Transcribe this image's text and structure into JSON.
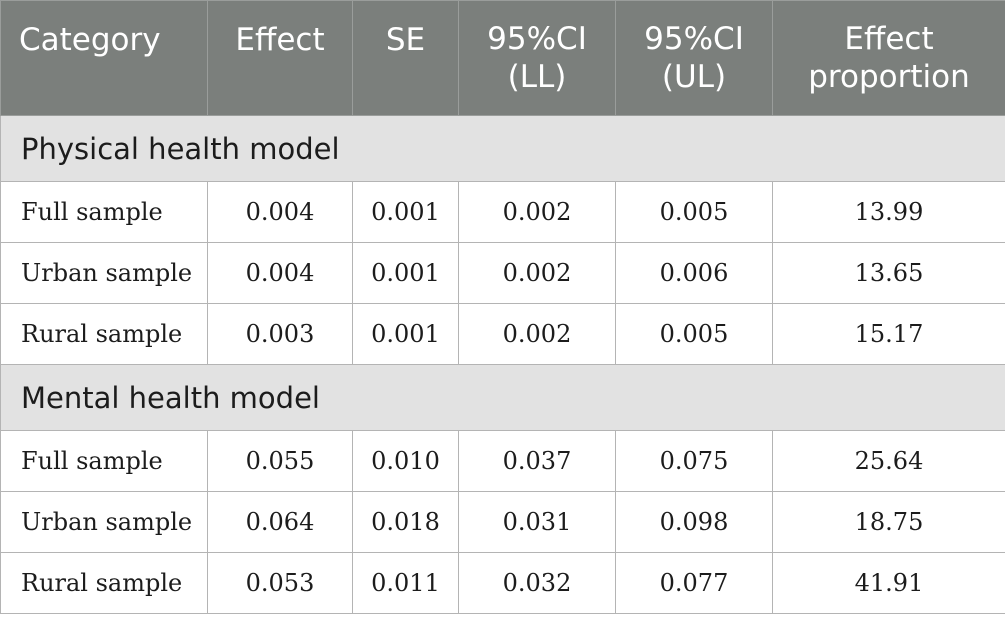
{
  "header": {
    "category": "Category",
    "effect": "Effect",
    "se": "SE",
    "ci_ll": [
      "95%CI",
      "(LL)"
    ],
    "ci_ul": [
      "95%CI",
      "(UL)"
    ],
    "effect_proportion": [
      "Effect",
      "proportion"
    ]
  },
  "sections": [
    {
      "title": "Physical health model",
      "rows": [
        {
          "category": "Full sample",
          "effect": "0.004",
          "se": "0.001",
          "ci_ll": "0.002",
          "ci_ul": "0.005",
          "effect_proportion": "13.99"
        },
        {
          "category": "Urban sample",
          "effect": "0.004",
          "se": "0.001",
          "ci_ll": "0.002",
          "ci_ul": "0.006",
          "effect_proportion": "13.65"
        },
        {
          "category": "Rural sample",
          "effect": "0.003",
          "se": "0.001",
          "ci_ll": "0.002",
          "ci_ul": "0.005",
          "effect_proportion": "15.17"
        }
      ]
    },
    {
      "title": "Mental health model",
      "rows": [
        {
          "category": "Full sample",
          "effect": "0.055",
          "se": "0.010",
          "ci_ll": "0.037",
          "ci_ul": "0.075",
          "effect_proportion": "25.64"
        },
        {
          "category": "Urban sample",
          "effect": "0.064",
          "se": "0.018",
          "ci_ll": "0.031",
          "ci_ul": "0.098",
          "effect_proportion": "18.75"
        },
        {
          "category": "Rural sample",
          "effect": "0.053",
          "se": "0.011",
          "ci_ll": "0.032",
          "ci_ul": "0.077",
          "effect_proportion": "41.91"
        }
      ]
    }
  ]
}
